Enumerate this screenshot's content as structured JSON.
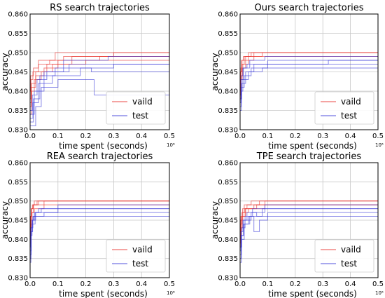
{
  "chart_data": [
    {
      "type": "line",
      "title": "RS search trajectories",
      "xlabel": "time spent (seconds)",
      "ylabel": "accuracy",
      "x_offset_label": "10⁶",
      "xlim": [
        0,
        0.5
      ],
      "ylim": [
        0.83,
        0.86
      ],
      "xticks": [
        "0.0",
        "0.1",
        "0.2",
        "0.3",
        "0.4",
        "0.5"
      ],
      "yticks": [
        "0.830",
        "0.835",
        "0.840",
        "0.845",
        "0.850",
        "0.855",
        "0.860"
      ],
      "grid": true,
      "legend": {
        "placement": "lower-right",
        "entries": [
          "vaild",
          "test"
        ]
      },
      "colors": {
        "valid": "#e8302c",
        "test": "#3a3ad8"
      },
      "series": [
        {
          "name": "vaild",
          "runs": [
            {
              "x": [
                0,
                0.003,
                0.01,
                0.03,
                0.07,
                0.12,
                0.3,
                0.5
              ],
              "y": [
                0.838,
                0.843,
                0.845,
                0.847,
                0.848,
                0.849,
                0.85,
                0.85
              ]
            },
            {
              "x": [
                0,
                0.004,
                0.02,
                0.05,
                0.1,
                0.25,
                0.5
              ],
              "y": [
                0.836,
                0.841,
                0.844,
                0.846,
                0.848,
                0.849,
                0.849
              ]
            },
            {
              "x": [
                0,
                0.006,
                0.015,
                0.04,
                0.08,
                0.2,
                0.5
              ],
              "y": [
                0.834,
                0.84,
                0.843,
                0.845,
                0.847,
                0.848,
                0.848
              ]
            },
            {
              "x": [
                0,
                0.002,
                0.012,
                0.03,
                0.09,
                0.5
              ],
              "y": [
                0.84,
                0.844,
                0.846,
                0.848,
                0.85,
                0.85
              ]
            },
            {
              "x": [
                0,
                0.005,
                0.02,
                0.06,
                0.15,
                0.5
              ],
              "y": [
                0.837,
                0.842,
                0.845,
                0.847,
                0.849,
                0.849
              ]
            }
          ]
        },
        {
          "name": "test",
          "runs": [
            {
              "x": [
                0,
                0.01,
                0.03,
                0.08,
                0.18,
                0.22,
                0.5
              ],
              "y": [
                0.833,
                0.837,
                0.842,
                0.844,
                0.846,
                0.845,
                0.847
              ]
            },
            {
              "x": [
                0,
                0.02,
                0.04,
                0.1,
                0.23,
                0.5
              ],
              "y": [
                0.831,
                0.836,
                0.841,
                0.843,
                0.839,
                0.846
              ]
            },
            {
              "x": [
                0,
                0.008,
                0.025,
                0.06,
                0.14,
                0.5
              ],
              "y": [
                0.835,
                0.839,
                0.843,
                0.845,
                0.847,
                0.848
              ]
            },
            {
              "x": [
                0,
                0.012,
                0.035,
                0.09,
                0.3,
                0.5
              ],
              "y": [
                0.832,
                0.838,
                0.844,
                0.846,
                0.847,
                0.847
              ]
            },
            {
              "x": [
                0,
                0.015,
                0.05,
                0.12,
                0.28,
                0.5
              ],
              "y": [
                0.834,
                0.84,
                0.845,
                0.848,
                0.849,
                0.849
              ]
            }
          ]
        }
      ]
    },
    {
      "type": "line",
      "title": "Ours search trajectories",
      "xlabel": "time spent (seconds)",
      "ylabel": "accuracy",
      "x_offset_label": "10⁶",
      "xlim": [
        0,
        0.5
      ],
      "ylim": [
        0.83,
        0.86
      ],
      "xticks": [
        "0.0",
        "0.1",
        "0.2",
        "0.3",
        "0.4",
        "0.5"
      ],
      "yticks": [
        "0.830",
        "0.835",
        "0.840",
        "0.845",
        "0.850",
        "0.855",
        "0.860"
      ],
      "grid": true,
      "legend": {
        "placement": "lower-right",
        "entries": [
          "vaild",
          "test"
        ]
      },
      "colors": {
        "valid": "#e8302c",
        "test": "#3a3ad8"
      },
      "series": [
        {
          "name": "vaild",
          "runs": [
            {
              "x": [
                0,
                0.002,
                0.005,
                0.012,
                0.03,
                0.5
              ],
              "y": [
                0.84,
                0.845,
                0.848,
                0.849,
                0.85,
                0.85
              ]
            },
            {
              "x": [
                0,
                0.003,
                0.008,
                0.02,
                0.05,
                0.5
              ],
              "y": [
                0.838,
                0.843,
                0.846,
                0.848,
                0.85,
                0.85
              ]
            },
            {
              "x": [
                0,
                0.004,
                0.01,
                0.03,
                0.08,
                0.5
              ],
              "y": [
                0.841,
                0.844,
                0.847,
                0.849,
                0.85,
                0.85
              ]
            },
            {
              "x": [
                0,
                0.002,
                0.006,
                0.015,
                0.04,
                0.5
              ],
              "y": [
                0.839,
                0.845,
                0.847,
                0.849,
                0.85,
                0.85
              ]
            },
            {
              "x": [
                0,
                0.003,
                0.007,
                0.02,
                0.18,
                0.5
              ],
              "y": [
                0.842,
                0.846,
                0.848,
                0.849,
                0.849,
                0.849
              ]
            }
          ]
        },
        {
          "name": "test",
          "runs": [
            {
              "x": [
                0,
                0.004,
                0.01,
                0.03,
                0.08,
                0.5
              ],
              "y": [
                0.836,
                0.84,
                0.843,
                0.845,
                0.846,
                0.846
              ]
            },
            {
              "x": [
                0,
                0.005,
                0.015,
                0.04,
                0.1,
                0.5
              ],
              "y": [
                0.835,
                0.841,
                0.844,
                0.846,
                0.848,
                0.848
              ]
            },
            {
              "x": [
                0,
                0.006,
                0.02,
                0.05,
                0.32,
                0.5
              ],
              "y": [
                0.838,
                0.842,
                0.845,
                0.847,
                0.848,
                0.848
              ]
            },
            {
              "x": [
                0,
                0.003,
                0.012,
                0.035,
                0.09,
                0.5
              ],
              "y": [
                0.837,
                0.843,
                0.846,
                0.848,
                0.849,
                0.849
              ]
            },
            {
              "x": [
                0,
                0.004,
                0.01,
                0.025,
                0.06,
                0.5
              ],
              "y": [
                0.839,
                0.844,
                0.846,
                0.847,
                0.847,
                0.847
              ]
            }
          ]
        }
      ]
    },
    {
      "type": "line",
      "title": "REA search trajectories",
      "xlabel": "time spent (seconds)",
      "ylabel": "accuracy",
      "x_offset_label": "10⁶",
      "xlim": [
        0,
        0.5
      ],
      "ylim": [
        0.83,
        0.86
      ],
      "xticks": [
        "0.0",
        "0.1",
        "0.2",
        "0.3",
        "0.4",
        "0.5"
      ],
      "yticks": [
        "0.830",
        "0.835",
        "0.840",
        "0.845",
        "0.850",
        "0.855",
        "0.860"
      ],
      "grid": true,
      "legend": {
        "placement": "lower-right",
        "entries": [
          "vaild",
          "test"
        ]
      },
      "colors": {
        "valid": "#e8302c",
        "test": "#3a3ad8"
      },
      "series": [
        {
          "name": "vaild",
          "runs": [
            {
              "x": [
                0,
                0.002,
                0.004,
                0.008,
                0.015,
                0.5
              ],
              "y": [
                0.841,
                0.846,
                0.848,
                0.849,
                0.85,
                0.85
              ]
            },
            {
              "x": [
                0,
                0.003,
                0.006,
                0.012,
                0.03,
                0.5
              ],
              "y": [
                0.84,
                0.845,
                0.847,
                0.849,
                0.85,
                0.85
              ]
            },
            {
              "x": [
                0,
                0.002,
                0.005,
                0.01,
                0.02,
                0.5
              ],
              "y": [
                0.842,
                0.846,
                0.848,
                0.849,
                0.849,
                0.849
              ]
            },
            {
              "x": [
                0,
                0.003,
                0.007,
                0.015,
                0.05,
                0.5
              ],
              "y": [
                0.839,
                0.844,
                0.847,
                0.848,
                0.85,
                0.85
              ]
            },
            {
              "x": [
                0,
                0.002,
                0.006,
                0.012,
                0.025,
                0.5
              ],
              "y": [
                0.843,
                0.846,
                0.848,
                0.849,
                0.85,
                0.85
              ]
            }
          ]
        },
        {
          "name": "test",
          "runs": [
            {
              "x": [
                0,
                0.003,
                0.008,
                0.015,
                0.03,
                0.5
              ],
              "y": [
                0.835,
                0.842,
                0.845,
                0.847,
                0.848,
                0.848
              ]
            },
            {
              "x": [
                0,
                0.004,
                0.01,
                0.02,
                0.1,
                0.5
              ],
              "y": [
                0.836,
                0.843,
                0.846,
                0.847,
                0.849,
                0.849
              ]
            },
            {
              "x": [
                0,
                0.002,
                0.006,
                0.012,
                0.025,
                0.5
              ],
              "y": [
                0.838,
                0.843,
                0.845,
                0.846,
                0.846,
                0.846
              ]
            },
            {
              "x": [
                0,
                0.003,
                0.007,
                0.018,
                0.04,
                0.5
              ],
              "y": [
                0.834,
                0.841,
                0.844,
                0.847,
                0.848,
                0.848
              ]
            },
            {
              "x": [
                0,
                0.004,
                0.009,
                0.02,
                0.05,
                0.5
              ],
              "y": [
                0.837,
                0.842,
                0.845,
                0.846,
                0.847,
                0.847
              ]
            }
          ]
        }
      ]
    },
    {
      "type": "line",
      "title": "TPE search trajectories",
      "xlabel": "time spent (seconds)",
      "ylabel": "accuracy",
      "x_offset_label": "10⁶",
      "xlim": [
        0,
        0.5
      ],
      "ylim": [
        0.83,
        0.86
      ],
      "xticks": [
        "0.0",
        "0.1",
        "0.2",
        "0.3",
        "0.4",
        "0.5"
      ],
      "yticks": [
        "0.830",
        "0.835",
        "0.840",
        "0.845",
        "0.850",
        "0.855",
        "0.860"
      ],
      "grid": true,
      "legend": {
        "placement": "lower-right",
        "entries": [
          "vaild",
          "test"
        ]
      },
      "colors": {
        "valid": "#e8302c",
        "test": "#3a3ad8"
      },
      "series": [
        {
          "name": "vaild",
          "runs": [
            {
              "x": [
                0,
                0.002,
                0.006,
                0.015,
                0.04,
                0.5
              ],
              "y": [
                0.84,
                0.845,
                0.847,
                0.849,
                0.85,
                0.85
              ]
            },
            {
              "x": [
                0,
                0.003,
                0.008,
                0.02,
                0.06,
                0.5
              ],
              "y": [
                0.838,
                0.843,
                0.846,
                0.848,
                0.849,
                0.849
              ]
            },
            {
              "x": [
                0,
                0.004,
                0.01,
                0.03,
                0.09,
                0.5
              ],
              "y": [
                0.841,
                0.845,
                0.847,
                0.848,
                0.85,
                0.85
              ]
            },
            {
              "x": [
                0,
                0.002,
                0.007,
                0.018,
                0.05,
                0.5
              ],
              "y": [
                0.839,
                0.844,
                0.846,
                0.848,
                0.849,
                0.849
              ]
            },
            {
              "x": [
                0,
                0.003,
                0.009,
                0.025,
                0.07,
                0.5
              ],
              "y": [
                0.842,
                0.846,
                0.848,
                0.849,
                0.85,
                0.85
              ]
            }
          ]
        },
        {
          "name": "test",
          "runs": [
            {
              "x": [
                0,
                0.004,
                0.012,
                0.03,
                0.05,
                0.07,
                0.1,
                0.5
              ],
              "y": [
                0.836,
                0.841,
                0.844,
                0.846,
                0.842,
                0.845,
                0.847,
                0.847
              ]
            },
            {
              "x": [
                0,
                0.005,
                0.015,
                0.035,
                0.08,
                0.5
              ],
              "y": [
                0.834,
                0.84,
                0.844,
                0.846,
                0.848,
                0.848
              ]
            },
            {
              "x": [
                0,
                0.003,
                0.01,
                0.025,
                0.06,
                0.5
              ],
              "y": [
                0.837,
                0.842,
                0.845,
                0.847,
                0.846,
                0.846
              ]
            },
            {
              "x": [
                0,
                0.004,
                0.013,
                0.04,
                0.09,
                0.5
              ],
              "y": [
                0.835,
                0.841,
                0.845,
                0.847,
                0.849,
                0.849
              ]
            },
            {
              "x": [
                0,
                0.006,
                0.018,
                0.045,
                0.08,
                0.5
              ],
              "y": [
                0.838,
                0.843,
                0.846,
                0.848,
                0.848,
                0.848
              ]
            }
          ]
        }
      ]
    }
  ]
}
